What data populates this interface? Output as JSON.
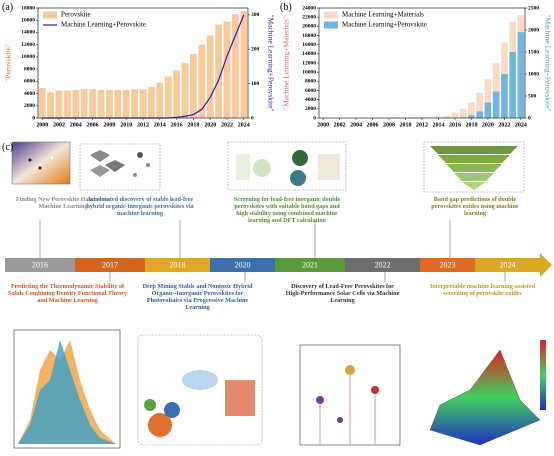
{
  "chart_data": [
    {
      "type": "bar",
      "panel": "(a)",
      "x": [
        2000,
        2001,
        2002,
        2003,
        2004,
        2005,
        2006,
        2007,
        2008,
        2009,
        2010,
        2011,
        2012,
        2013,
        2014,
        2015,
        2016,
        2017,
        2018,
        2019,
        2020,
        2021,
        2022,
        2023,
        2024
      ],
      "xlim": [
        1999.5,
        2024.5
      ],
      "xticks": [
        2000,
        2002,
        2004,
        2006,
        2008,
        2010,
        2012,
        2014,
        2016,
        2018,
        2020,
        2022,
        2024
      ],
      "ylim": [
        0,
        18000
      ],
      "yticks": [
        0,
        2000,
        4000,
        6000,
        8000,
        10000,
        12000,
        14000,
        16000,
        18000
      ],
      "y2lim": [
        0,
        320
      ],
      "y2ticks": [
        0,
        100,
        200,
        300
      ],
      "ylabel": "\"Perovskite\"",
      "y2label": "\"Machine Learning+Perovskite\"",
      "ylabel_color": "#e8721c",
      "y2label_color": "#2a1ca8",
      "series": [
        {
          "name": "Perovskite",
          "type": "bar",
          "color": "#f9c99b",
          "values": [
            4900,
            4200,
            4500,
            4500,
            4600,
            4700,
            4700,
            4600,
            4600,
            4600,
            4600,
            4700,
            4700,
            5100,
            5800,
            6800,
            7800,
            9000,
            10500,
            12000,
            13500,
            15300,
            15800,
            17000,
            17500
          ]
        },
        {
          "name": "Machine Learning+Perovskite",
          "type": "line",
          "axis": "y2",
          "color": "#2a1ca8",
          "values": [
            0,
            0,
            0,
            0,
            0,
            0,
            0,
            0,
            0,
            0,
            0,
            0,
            0,
            0,
            0,
            0,
            2,
            5,
            10,
            25,
            60,
            110,
            180,
            240,
            300
          ]
        }
      ]
    },
    {
      "type": "bar",
      "panel": "(b)",
      "x": [
        2000,
        2001,
        2002,
        2003,
        2004,
        2005,
        2006,
        2007,
        2008,
        2009,
        2010,
        2011,
        2012,
        2013,
        2014,
        2015,
        2016,
        2017,
        2018,
        2019,
        2020,
        2021,
        2022,
        2023,
        2024
      ],
      "xlim": [
        1999.5,
        2024.5
      ],
      "xticks": [
        2000,
        2002,
        2004,
        2006,
        2008,
        2010,
        2012,
        2014,
        2016,
        2018,
        2020,
        2022,
        2024
      ],
      "ylim": [
        0,
        24000
      ],
      "yticks": [
        0,
        2000,
        4000,
        6000,
        8000,
        10000,
        12000,
        14000,
        16000,
        18000,
        20000,
        22000,
        24000
      ],
      "y2lim": [
        0,
        2500
      ],
      "y2ticks": [
        0,
        500,
        1000,
        1500,
        2000,
        2500
      ],
      "ylabel": "\"Machine Learning+Materials\"",
      "y2label": "\"Machine Learning+Perovskite\"",
      "ylabel_color": "#e8607a",
      "y2label_color": "#3aa0d8",
      "series": [
        {
          "name": "Machine Learning+Materials",
          "type": "bar",
          "color": "#fbd9c4",
          "values": [
            50,
            50,
            60,
            60,
            70,
            80,
            90,
            100,
            110,
            120,
            130,
            150,
            170,
            200,
            300,
            500,
            1200,
            2000,
            3500,
            5500,
            8500,
            12000,
            16500,
            21000,
            22500
          ]
        },
        {
          "name": "Machine Learning+Perovskite",
          "type": "bar",
          "axis": "y2",
          "color": "#6fb6e0",
          "values": [
            0,
            0,
            0,
            0,
            0,
            0,
            0,
            0,
            0,
            0,
            0,
            0,
            0,
            0,
            0,
            0,
            5,
            15,
            60,
            150,
            350,
            600,
            1000,
            1500,
            1950
          ]
        }
      ]
    }
  ],
  "timeline": {
    "panel": "(c)",
    "years": [
      "2016",
      "2017",
      "2018",
      "2020",
      "2021",
      "2022",
      "2023",
      "2024"
    ],
    "colors": [
      "#9a9a9a",
      "#d4661c",
      "#e0a820",
      "#3a6fb0",
      "#5a9a3a",
      "#6e6e6e",
      "#e06a1e",
      "#d9a820"
    ],
    "top": [
      {
        "text": "Finding New Perovskite Halides via Machine Learning",
        "color": "#8a8a8a"
      },
      {
        "text": "Accelerated discovery of stable lead-free hybrid organic-inorganic perovskites via machine learning",
        "color": "#3a6fb0"
      },
      {
        "text": "Screening for lead-free inorganic double perovskites with suitable band gaps and high stability using combined machine learning and DFT calculation",
        "color": "#4f8f2f"
      },
      {
        "text": "Band gap predictions of double perovskites oxides using machine learning",
        "color": "#8a7a20"
      }
    ],
    "bottom": [
      {
        "text": "Predicting the Thermodynamic Stability of Solids Combining Density Functional Theory and Machine Learning",
        "color": "#d4561c"
      },
      {
        "text": "Deep Mining Stable and Nontoxic Hybrid Organic–Inorganic Perovskites for Photovoltaics via Progressive Machine Learning",
        "color": "#2f5fa8"
      },
      {
        "text": "Discovery of Lead-Free Perovskites for High-Performance Solar Cells via Machine Learning",
        "color": "#333333"
      },
      {
        "text": "Interpretable machine learning-assisted screening of perovskite oxides",
        "color": "#c8961a"
      }
    ]
  }
}
